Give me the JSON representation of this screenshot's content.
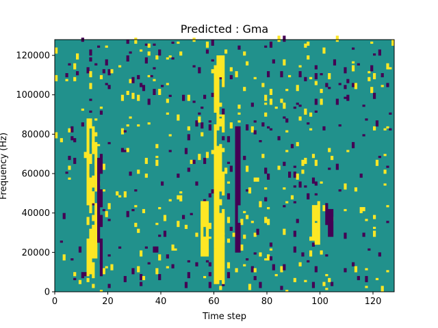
{
  "chart_data": {
    "type": "heatmap",
    "title": "Predicted : Gma",
    "xlabel": "Time step",
    "ylabel": "Frequency (Hz)",
    "xlim": [
      0,
      128
    ],
    "ylim": [
      0,
      128000
    ],
    "xticks": [
      0,
      20,
      40,
      60,
      80,
      100,
      120
    ],
    "yticks": [
      0,
      20000,
      40000,
      60000,
      80000,
      100000,
      120000
    ],
    "colormap": "viridis",
    "levels": {
      "low": "#440154",
      "mid": "#21918c",
      "high": "#fde725"
    },
    "background_level": "mid",
    "grid": false,
    "columns": 128,
    "rows": 128,
    "bands": [
      {
        "x0": 12,
        "x1": 16,
        "y0": 4000,
        "y1": 88000,
        "level": "high"
      },
      {
        "x0": 16,
        "x1": 18,
        "y0": 8000,
        "y1": 70000,
        "level": "low"
      },
      {
        "x0": 60,
        "x1": 64,
        "y0": 4000,
        "y1": 120000,
        "level": "high"
      },
      {
        "x0": 68,
        "x1": 70,
        "y0": 20000,
        "y1": 84000,
        "level": "low"
      },
      {
        "x0": 97,
        "x1": 100,
        "y0": 24000,
        "y1": 44000,
        "level": "high"
      },
      {
        "x0": 102,
        "x1": 105,
        "y0": 28000,
        "y1": 42000,
        "level": "low"
      },
      {
        "x0": 55,
        "x1": 58,
        "y0": 18000,
        "y1": 46000,
        "level": "high"
      }
    ],
    "speckle_density": 0.07,
    "speckle_high_fraction": 0.5
  }
}
